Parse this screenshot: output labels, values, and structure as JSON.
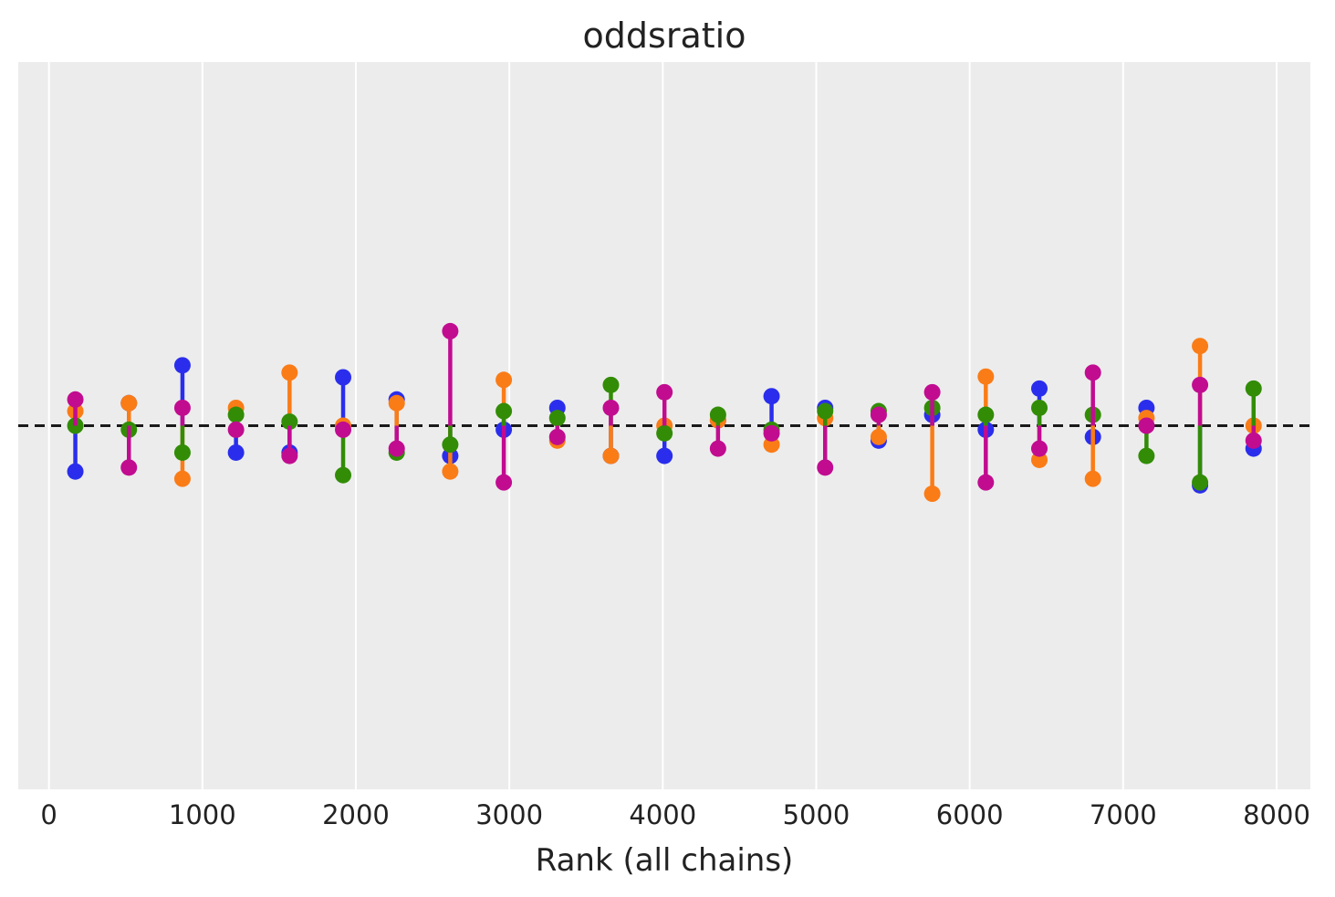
{
  "chart_data": {
    "type": "scatter",
    "title": "oddsratio",
    "xlabel": "Rank (all chains)",
    "ylabel": "",
    "xlim": [
      -200,
      8220
    ],
    "ylim": [
      -1.0,
      1.0
    ],
    "xticks": [
      0,
      1000,
      2000,
      3000,
      4000,
      5000,
      6000,
      7000,
      8000
    ],
    "yticks_visible": false,
    "grid": "vertical",
    "reference_line": {
      "y": 0,
      "style": "dashed",
      "color": "#1a1a1a"
    },
    "x": [
      172,
      521,
      870,
      1219,
      1568,
      1917,
      2266,
      2615,
      2964,
      3313,
      3662,
      4011,
      4360,
      4709,
      5058,
      5407,
      5756,
      6105,
      6454,
      6803,
      7152,
      7501,
      7850
    ],
    "series": [
      {
        "color": "#2a2eec",
        "values": [
          -0.126,
          0.062,
          0.166,
          -0.074,
          -0.074,
          0.133,
          0.072,
          -0.083,
          -0.011,
          0.049,
          -0.083,
          -0.083,
          0.015,
          0.081,
          0.049,
          -0.041,
          0.03,
          -0.011,
          0.102,
          -0.031,
          0.049,
          -0.164,
          -0.063
        ]
      },
      {
        "color": "#fa7c17",
        "values": [
          0.04,
          0.062,
          -0.146,
          0.049,
          0.146,
          0.0,
          0.062,
          -0.126,
          0.126,
          -0.041,
          -0.083,
          0.0,
          0.015,
          -0.052,
          0.021,
          -0.031,
          -0.187,
          0.135,
          -0.094,
          -0.146,
          0.021,
          0.219,
          0.0
        ]
      },
      {
        "color": "#328c06",
        "values": [
          0.0,
          -0.011,
          -0.074,
          0.03,
          0.011,
          -0.136,
          -0.074,
          -0.052,
          0.04,
          0.021,
          0.112,
          -0.021,
          0.03,
          -0.011,
          0.04,
          0.04,
          0.049,
          0.03,
          0.049,
          0.03,
          -0.083,
          -0.156,
          0.102
        ]
      },
      {
        "color": "#c10c90",
        "values": [
          0.072,
          -0.115,
          0.049,
          -0.011,
          -0.083,
          -0.011,
          -0.063,
          0.26,
          -0.156,
          -0.031,
          0.049,
          0.092,
          -0.063,
          -0.021,
          -0.115,
          0.03,
          0.092,
          -0.156,
          -0.063,
          0.146,
          0.0,
          0.112,
          -0.041
        ]
      }
    ]
  }
}
